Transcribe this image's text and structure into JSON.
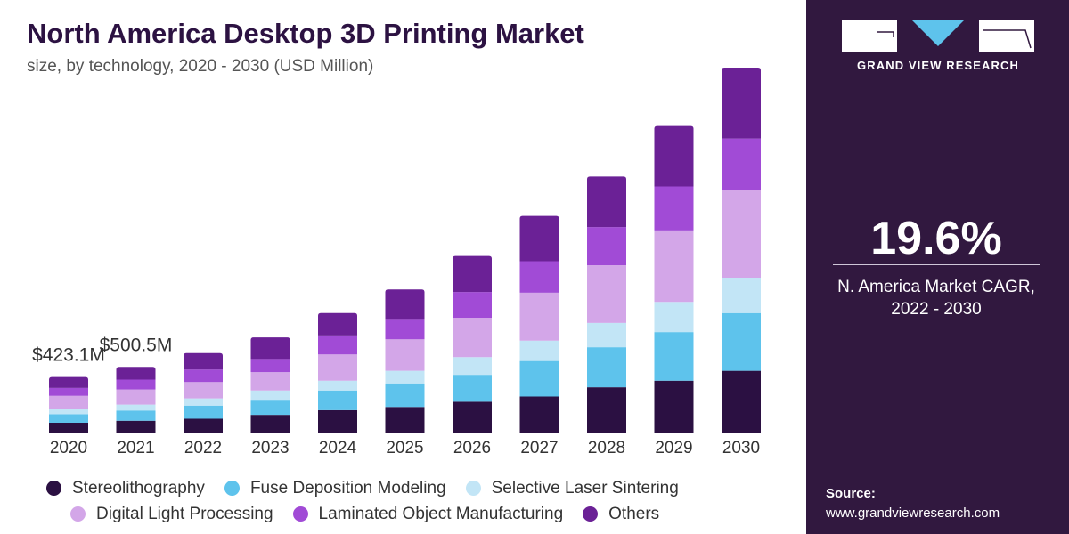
{
  "title": "North America Desktop 3D Printing Market",
  "subtitle": "size, by technology, 2020 - 2030 (USD Million)",
  "brand": {
    "name": "GRAND VIEW RESEARCH",
    "panel_color": "#31183f"
  },
  "cagr": {
    "value": "19.6%",
    "label_line1": "N. America Market CAGR,",
    "label_line2": "2022 - 2030"
  },
  "source": {
    "label": "Source:",
    "url": "www.grandviewresearch.com"
  },
  "chart_data": {
    "type": "bar",
    "stacked": true,
    "title": "North America Desktop 3D Printing Market",
    "subtitle": "size, by technology, 2020 - 2030 (USD Million)",
    "categories": [
      "2020",
      "2021",
      "2022",
      "2023",
      "2024",
      "2025",
      "2026",
      "2027",
      "2028",
      "2029",
      "2030"
    ],
    "annotations": [
      {
        "category": "2020",
        "text": "$423.1M"
      },
      {
        "category": "2021",
        "text": "$500.5M"
      }
    ],
    "legend_position": "bottom",
    "grid": false,
    "series": [
      {
        "name": "Stereolithography",
        "color": "#2b1042",
        "values": [
          75,
          90,
          105,
          135,
          170,
          195,
          235,
          275,
          345,
          395,
          470
        ]
      },
      {
        "name": "Fuse Deposition Modeling",
        "color": "#5ec3ec",
        "values": [
          65,
          78,
          100,
          115,
          150,
          180,
          205,
          270,
          305,
          370,
          440
        ]
      },
      {
        "name": "Selective Laser Sintering",
        "color": "#c2e5f6",
        "values": [
          40,
          45,
          55,
          70,
          75,
          95,
          135,
          155,
          185,
          230,
          270
        ]
      },
      {
        "name": "Digital Light Processing",
        "color": "#d3a6e8",
        "values": [
          100,
          115,
          125,
          140,
          200,
          240,
          300,
          365,
          440,
          545,
          670
        ]
      },
      {
        "name": "Laminated Object Manufacturing",
        "color": "#a14bd6",
        "values": [
          60,
          75,
          95,
          100,
          145,
          155,
          195,
          240,
          290,
          335,
          390
        ]
      },
      {
        "name": "Others",
        "color": "#6b2196",
        "values": [
          83,
          97,
          125,
          165,
          170,
          225,
          275,
          345,
          385,
          460,
          540
        ]
      }
    ]
  }
}
